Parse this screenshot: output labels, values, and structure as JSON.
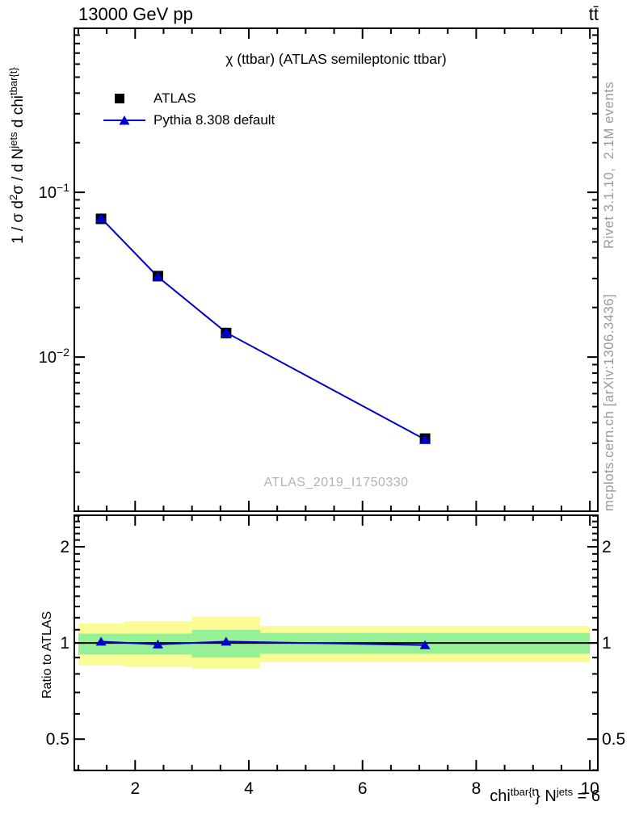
{
  "header": {
    "left": "13000 GeV pp",
    "right": "tt̄"
  },
  "main_panel": {
    "title": "χ (ttbar) (ATLAS semileptonic ttbar)",
    "watermark": "ATLAS_2019_I1750330",
    "legend": [
      {
        "label": "ATLAS",
        "marker": "filled-square",
        "color": "#000000"
      },
      {
        "label": "Pythia 8.308 default",
        "marker": "line-with-triangle",
        "color": "#0000cc"
      }
    ],
    "ylabel_parts": [
      {
        "t": "1 / σ d",
        "sup": false
      },
      {
        "t": "2",
        "sup": true
      },
      {
        "t": "σ / d N",
        "sup": false
      },
      {
        "t": "jets",
        "sup": true
      },
      {
        "t": " d chi",
        "sup": false
      },
      {
        "t": "tbar{t}",
        "sup": true
      }
    ]
  },
  "ratio_panel": {
    "ylabel": "Ratio to ATLAS"
  },
  "xaxis": {
    "label_parts": [
      {
        "t": "chi",
        "sup": false
      },
      {
        "t": "tbar{t",
        "sup": true
      },
      {
        "t": "}",
        "sup": false
      },
      {
        "t": " N",
        "sup": false
      },
      {
        "t": "jets",
        "sup": true
      },
      {
        "t": " = 6",
        "sup": false
      }
    ]
  },
  "side_texts": {
    "top_right": "Rivet 3.1.10,  2.1M events",
    "bottom_right": "mcplots.cern.ch [arXiv:1306.3436]"
  },
  "chart_data": [
    {
      "type": "line",
      "panel": "main",
      "title": "χ (ttbar) (ATLAS semileptonic ttbar)",
      "x_range": [
        0.93,
        10.14
      ],
      "y_range": [
        0.00116,
        0.99
      ],
      "y_scale": "log10",
      "x_ticks_major": [
        2,
        4,
        6,
        8,
        10
      ],
      "x_tick_labels": [
        "2",
        "4",
        "6",
        "8",
        "10"
      ],
      "x_minor_step": 0.5,
      "y_ticks_labeled": [
        {
          "v": 0.1,
          "base": "10",
          "exp": "−1"
        },
        {
          "v": 0.01,
          "base": "10",
          "exp": "−2"
        }
      ],
      "grid": false,
      "legend_position": "top-left",
      "series": [
        {
          "name": "ATLAS",
          "marker": "square",
          "color": "#000000",
          "line": false,
          "x": [
            1.4,
            2.4,
            3.6,
            7.1
          ],
          "y": [
            0.069,
            0.031,
            0.014,
            0.0032
          ]
        },
        {
          "name": "Pythia 8.308 default",
          "marker": "triangle",
          "color": "#0000cc",
          "line": true,
          "x": [
            1.4,
            2.4,
            3.6,
            7.1
          ],
          "y": [
            0.0697,
            0.0307,
            0.0141,
            0.00316
          ]
        }
      ]
    },
    {
      "type": "ratio",
      "panel": "ratio",
      "ylabel": "Ratio to ATLAS",
      "x_range": [
        0.93,
        10.14
      ],
      "y_range": [
        0.399,
        2.51
      ],
      "y_scale": "log2",
      "y_ticks": [
        0.5,
        1,
        2
      ],
      "y_tick_labels": [
        "0.5",
        "1",
        "2"
      ],
      "band_colors": {
        "outer": "#fcfc96",
        "inner": "#96f096"
      },
      "bins": [
        {
          "xlo": 1.0,
          "xhi": 1.8,
          "outer": [
            0.85,
            1.15
          ],
          "inner": [
            0.92,
            1.07
          ]
        },
        {
          "xlo": 1.8,
          "xhi": 3.0,
          "outer": [
            0.84,
            1.17
          ],
          "inner": [
            0.92,
            1.07
          ]
        },
        {
          "xlo": 3.0,
          "xhi": 4.2,
          "outer": [
            0.83,
            1.21
          ],
          "inner": [
            0.9,
            1.1
          ]
        },
        {
          "xlo": 4.2,
          "xhi": 10.0,
          "outer": [
            0.87,
            1.13
          ],
          "inner": [
            0.925,
            1.075
          ]
        }
      ],
      "reference_line": 1.0,
      "ratio_series": {
        "name": "Pythia 8.308 default",
        "color": "#0000cc",
        "x": [
          1.4,
          2.4,
          3.6,
          7.1
        ],
        "y": [
          1.01,
          0.99,
          1.01,
          0.985
        ]
      }
    }
  ]
}
